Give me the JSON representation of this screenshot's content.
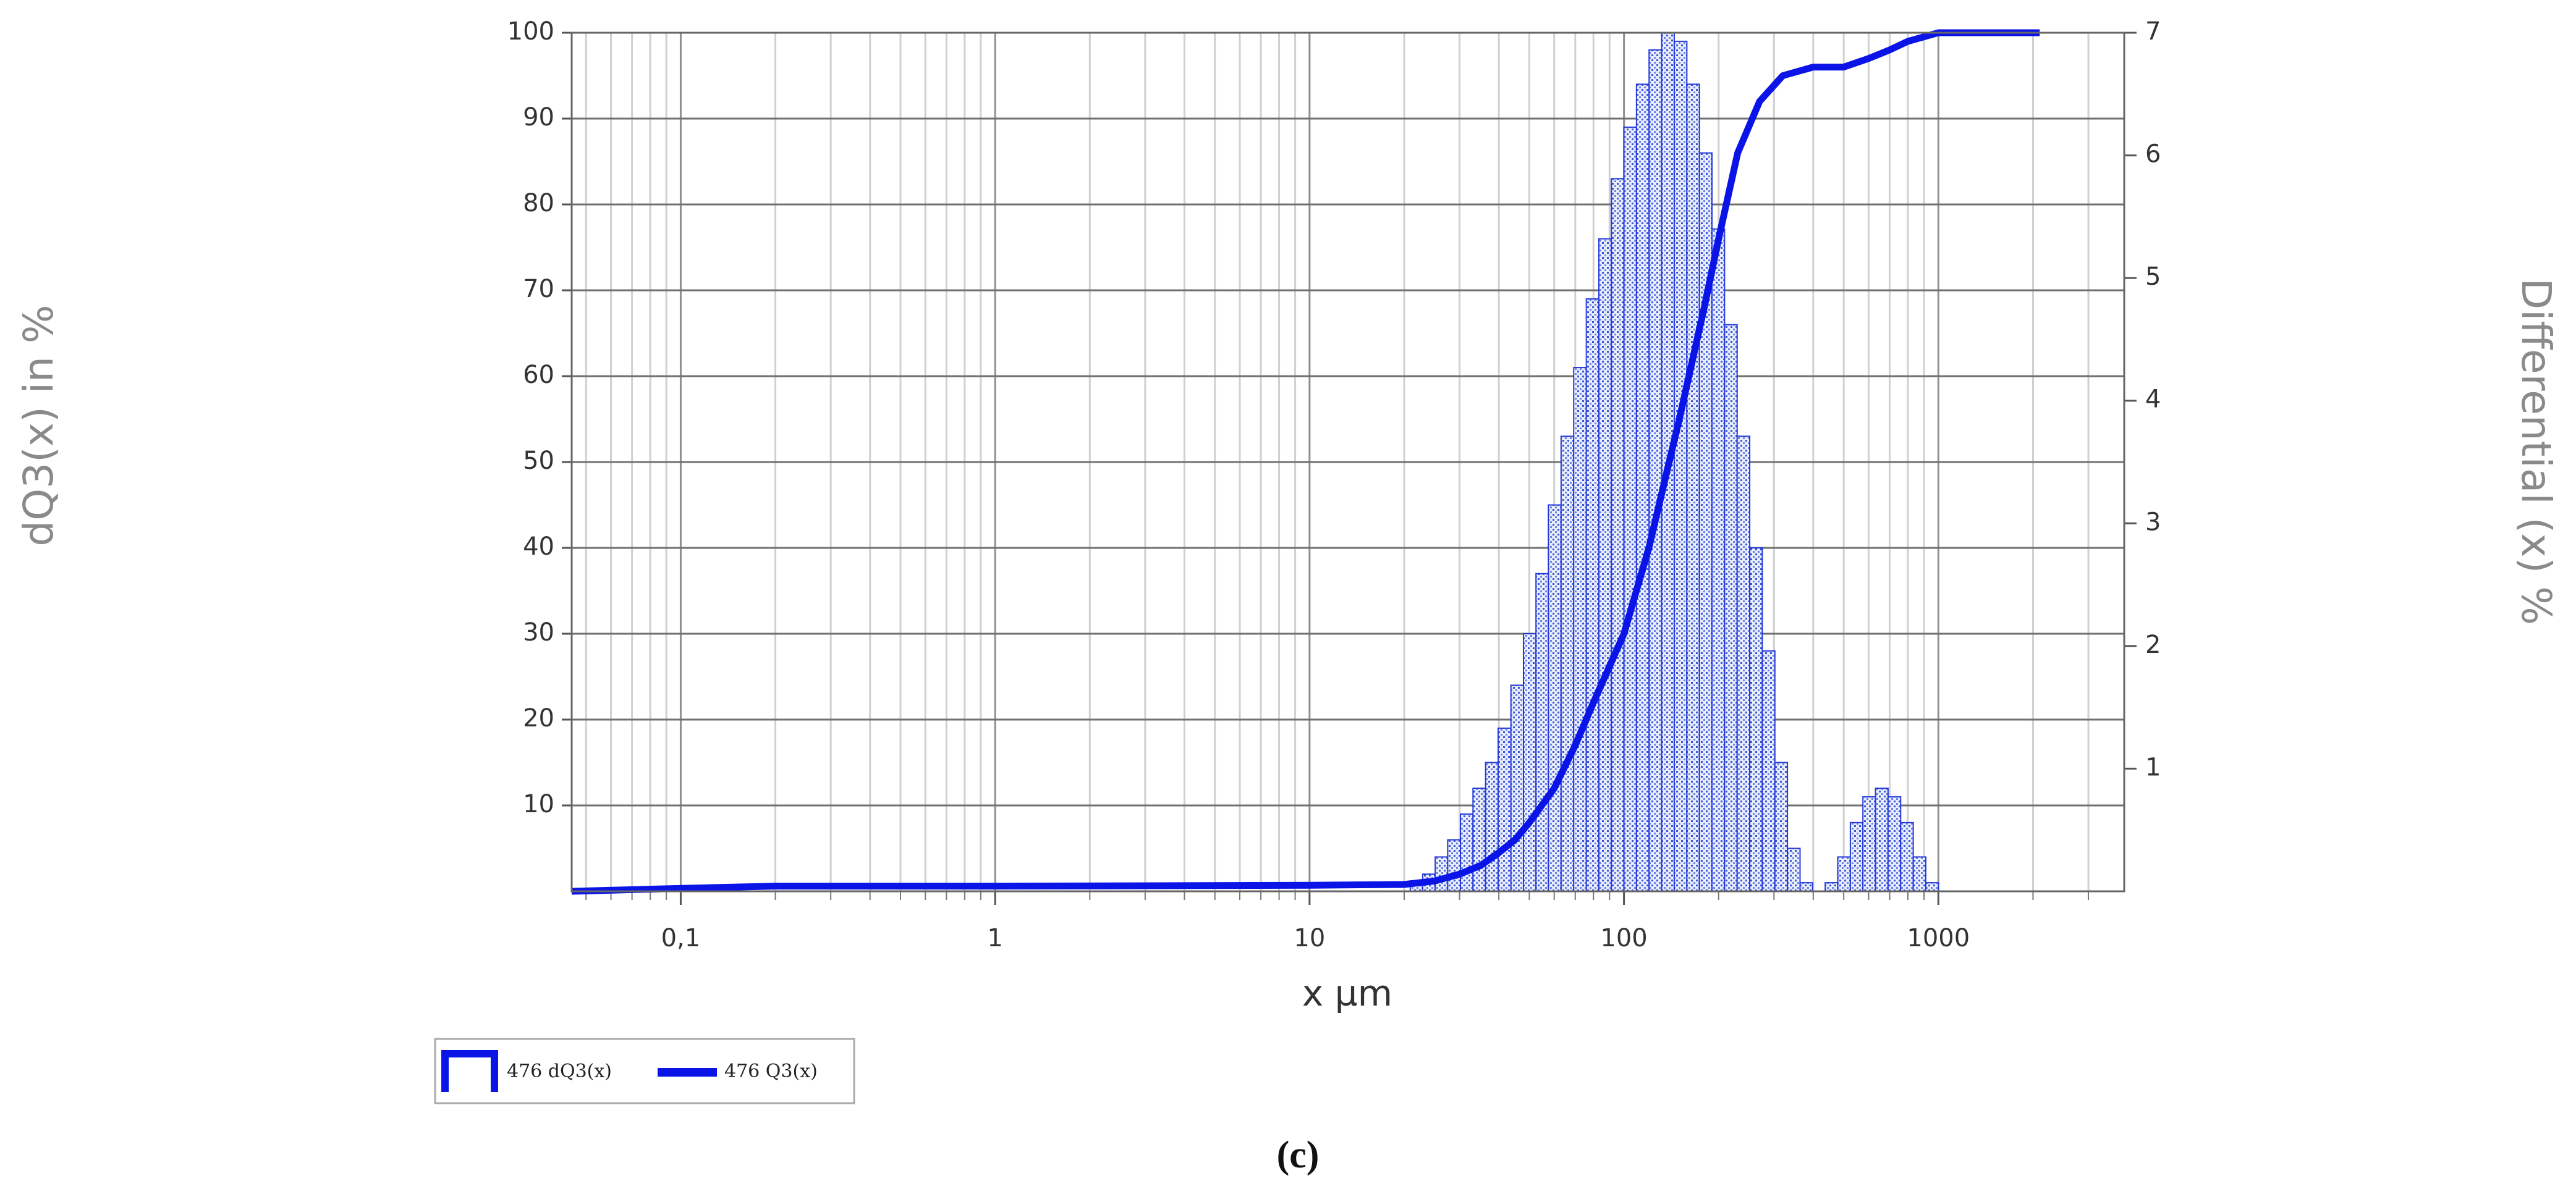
{
  "chart_data": {
    "type": "histogram",
    "xlabel": "x µm",
    "ylabel": "dQ3(x) in %",
    "y2label": "Differential (x) %",
    "caption": "(c)",
    "xscale": "log",
    "xlim": [
      0.045,
      3900
    ],
    "xticks": [
      {
        "value": 0.1,
        "label": "0,1"
      },
      1,
      10,
      100,
      1000
    ],
    "xminorticks": [
      0.05,
      0.06,
      0.07,
      0.08,
      0.09,
      0.2,
      0.3,
      0.4,
      0.5,
      0.6,
      0.7,
      0.8,
      0.9,
      2,
      3,
      4,
      5,
      6,
      7,
      8,
      9,
      20,
      30,
      40,
      50,
      60,
      70,
      80,
      90,
      200,
      300,
      400,
      500,
      600,
      700,
      800,
      900,
      2000,
      3000
    ],
    "ylim": [
      0,
      100
    ],
    "yticks": [
      10,
      20,
      30,
      40,
      50,
      60,
      70,
      80,
      90,
      100
    ],
    "y2lim": [
      0,
      7
    ],
    "y2ticks": [
      1,
      2,
      3,
      4,
      5,
      6,
      7
    ],
    "grid": true,
    "legend": "bottom-left",
    "series": [
      {
        "name": "476 dQ3(x)",
        "type": "histogram",
        "axis": "y2",
        "color": "#2438d8",
        "bins": [
          20.9,
          22.9,
          25.1,
          27.5,
          30.2,
          33.1,
          36.3,
          39.8,
          43.7,
          47.9,
          52.5,
          57.5,
          63.1,
          69.2,
          75.9,
          83.2,
          91.2,
          100,
          109.6,
          120.2,
          131.8,
          144.5,
          158.5,
          173.8,
          190.5,
          208.9,
          229.1,
          251.2,
          275.4,
          302.0,
          331.1,
          363.1,
          398.1,
          436.5,
          478.6,
          524.8,
          575.4,
          631.0,
          691.8,
          758.6,
          831.8,
          912.0,
          1000,
          1096.5
        ],
        "values": [
          0.07,
          0.14,
          0.28,
          0.42,
          0.63,
          0.84,
          1.05,
          1.33,
          1.68,
          2.1,
          2.59,
          3.15,
          3.71,
          4.27,
          4.83,
          5.32,
          5.81,
          6.23,
          6.58,
          6.86,
          7.0,
          6.93,
          6.58,
          6.02,
          5.4,
          4.62,
          3.71,
          2.8,
          1.96,
          1.05,
          0.35,
          0.07,
          0,
          0.07,
          0.28,
          0.56,
          0.77,
          0.84,
          0.77,
          0.56,
          0.28,
          0.07,
          0
        ]
      },
      {
        "name": "476 Q3(x)",
        "type": "line",
        "color": "#0a14e6",
        "x": [
          0.045,
          0.09,
          0.2,
          1,
          10,
          20,
          25,
          30,
          35,
          40,
          45,
          50,
          60,
          70,
          80,
          100,
          120,
          150,
          180,
          200,
          230,
          270,
          320,
          400,
          500,
          600,
          700,
          800,
          1000,
          2100
        ],
        "values": [
          0,
          0.3,
          0.6,
          0.6,
          0.7,
          0.8,
          1.2,
          2,
          3,
          4.5,
          6,
          8,
          12,
          17,
          22,
          30,
          40,
          55,
          68,
          76,
          86,
          92,
          95,
          96,
          96,
          97,
          98,
          99,
          100,
          100
        ]
      }
    ]
  }
}
